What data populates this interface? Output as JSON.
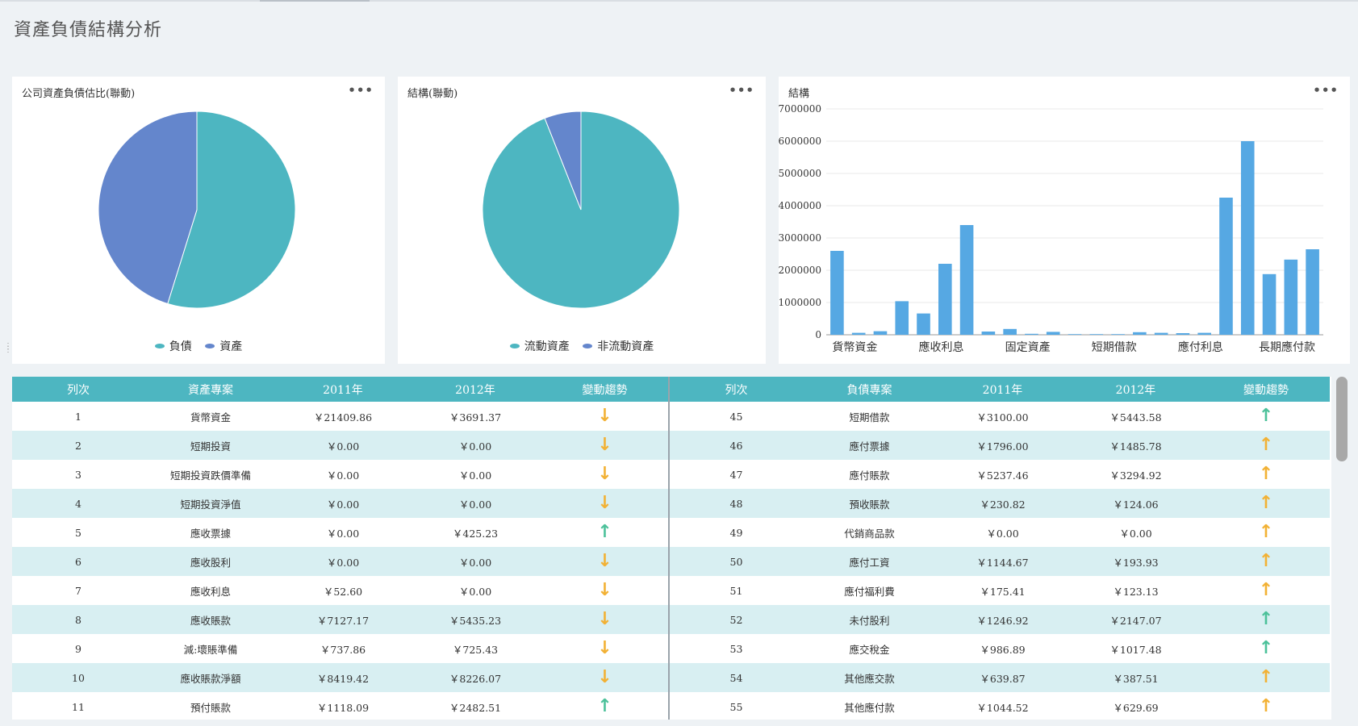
{
  "page": {
    "title": "資產負債結構分析"
  },
  "cards": {
    "pie1": {
      "title": "公司資產負債估比(聯動)",
      "legend": [
        {
          "label": "負債",
          "color": "#4db6c1"
        },
        {
          "label": "資產",
          "color": "#6486cc"
        }
      ]
    },
    "pie2": {
      "title": "結構(聯動)",
      "legend": [
        {
          "label": "流動資產",
          "color": "#4db6c1"
        },
        {
          "label": "非流動資產",
          "color": "#6486cc"
        }
      ]
    },
    "bar": {
      "title": "結構"
    }
  },
  "chart_data": [
    {
      "type": "pie",
      "title": "公司資產負債估比(聯動)",
      "labels": [
        "負債",
        "資產"
      ],
      "values": [
        54.8,
        45.2
      ],
      "colors": [
        "#4db6c1",
        "#6486cc"
      ]
    },
    {
      "type": "pie",
      "title": "結構(聯動)",
      "labels": [
        "流動資產",
        "非流動資產"
      ],
      "values": [
        94.0,
        6.0
      ],
      "colors": [
        "#4db6c1",
        "#6486cc"
      ]
    },
    {
      "type": "bar",
      "title": "結構",
      "ylim": [
        0,
        7000000
      ],
      "yticks": [
        "0",
        "1000000",
        "2000000",
        "3000000",
        "4000000",
        "5000000",
        "6000000",
        "7000000"
      ],
      "xtick_labels": [
        {
          "label": "貨幣資金",
          "index": 0
        },
        {
          "label": "應收利息",
          "index": 4
        },
        {
          "label": "固定資產",
          "index": 8
        },
        {
          "label": "短期借款",
          "index": 12
        },
        {
          "label": "應付利息",
          "index": 16
        },
        {
          "label": "長期應付款",
          "index": 20
        }
      ],
      "values": [
        2600000,
        60000,
        110000,
        1040000,
        660000,
        2200000,
        3400000,
        100000,
        180000,
        30000,
        90000,
        20000,
        20000,
        20000,
        80000,
        60000,
        50000,
        60000,
        4250000,
        6000000,
        1880000,
        2330000,
        2650000
      ],
      "color": "#56a8e3",
      "grid": true
    }
  ],
  "tables": {
    "left": {
      "headers": [
        "列次",
        "資產專案",
        "2011年",
        "2012年",
        "變動趨勢"
      ],
      "rows": [
        {
          "no": "1",
          "item": "貨幣資金",
          "y2011": "￥21409.86",
          "y2012": "￥3691.37",
          "trend": "down"
        },
        {
          "no": "2",
          "item": "短期投資",
          "y2011": "￥0.00",
          "y2012": "￥0.00",
          "trend": "down"
        },
        {
          "no": "3",
          "item": "短期投資跌價準備",
          "y2011": "￥0.00",
          "y2012": "￥0.00",
          "trend": "down"
        },
        {
          "no": "4",
          "item": "短期投資淨值",
          "y2011": "￥0.00",
          "y2012": "￥0.00",
          "trend": "down"
        },
        {
          "no": "5",
          "item": "應收票據",
          "y2011": "￥0.00",
          "y2012": "￥425.23",
          "trend": "up"
        },
        {
          "no": "6",
          "item": "應收股利",
          "y2011": "￥0.00",
          "y2012": "￥0.00",
          "trend": "down"
        },
        {
          "no": "7",
          "item": "應收利息",
          "y2011": "￥52.60",
          "y2012": "￥0.00",
          "trend": "down"
        },
        {
          "no": "8",
          "item": "應收賬款",
          "y2011": "￥7127.17",
          "y2012": "￥5435.23",
          "trend": "down"
        },
        {
          "no": "9",
          "item": "減:壞賬準備",
          "y2011": "￥737.86",
          "y2012": "￥725.43",
          "trend": "down"
        },
        {
          "no": "10",
          "item": "應收賬款淨額",
          "y2011": "￥8419.42",
          "y2012": "￥8226.07",
          "trend": "down"
        },
        {
          "no": "11",
          "item": "預付賬款",
          "y2011": "￥1118.09",
          "y2012": "￥2482.51",
          "trend": "up"
        }
      ]
    },
    "right": {
      "headers": [
        "列次",
        "負債專案",
        "2011年",
        "2012年",
        "變動趨勢"
      ],
      "rows": [
        {
          "no": "45",
          "item": "短期借款",
          "y2011": "￥3100.00",
          "y2012": "￥5443.58",
          "trend": "up"
        },
        {
          "no": "46",
          "item": "應付票據",
          "y2011": "￥1796.00",
          "y2012": "￥1485.78",
          "trend": "up-warn"
        },
        {
          "no": "47",
          "item": "應付賬款",
          "y2011": "￥5237.46",
          "y2012": "￥3294.92",
          "trend": "up-warn"
        },
        {
          "no": "48",
          "item": "預收賬款",
          "y2011": "￥230.82",
          "y2012": "￥124.06",
          "trend": "up-warn"
        },
        {
          "no": "49",
          "item": "代銷商品款",
          "y2011": "￥0.00",
          "y2012": "￥0.00",
          "trend": "up-warn"
        },
        {
          "no": "50",
          "item": "應付工資",
          "y2011": "￥1144.67",
          "y2012": "￥193.93",
          "trend": "up-warn"
        },
        {
          "no": "51",
          "item": "應付福利費",
          "y2011": "￥175.41",
          "y2012": "￥123.13",
          "trend": "up-warn"
        },
        {
          "no": "52",
          "item": "未付股利",
          "y2011": "￥1246.92",
          "y2012": "￥2147.07",
          "trend": "up"
        },
        {
          "no": "53",
          "item": "應交稅金",
          "y2011": "￥986.89",
          "y2012": "￥1017.48",
          "trend": "up"
        },
        {
          "no": "54",
          "item": "其他應交款",
          "y2011": "￥639.87",
          "y2012": "￥387.51",
          "trend": "up-warn"
        },
        {
          "no": "55",
          "item": "其他應付款",
          "y2011": "￥1044.52",
          "y2012": "￥629.69",
          "trend": "up-warn"
        }
      ]
    }
  },
  "icons": {
    "more": "more-dots-icon",
    "arrow_up": "arrow-up-icon",
    "arrow_down": "arrow-down-icon"
  }
}
